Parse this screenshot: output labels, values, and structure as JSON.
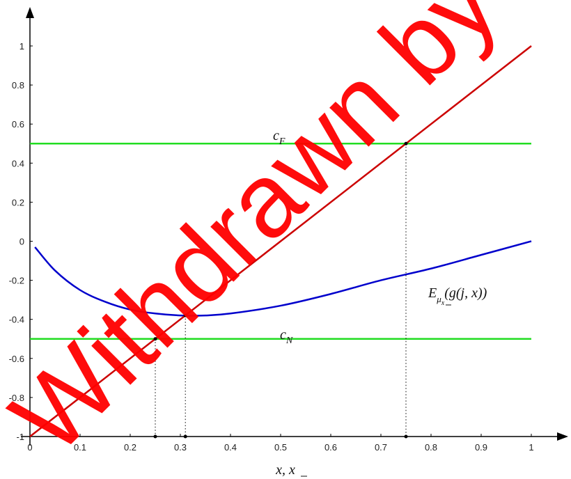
{
  "chart_data": {
    "type": "line",
    "xlim": [
      0,
      1
    ],
    "ylim": [
      -1,
      1
    ],
    "xlabel": "x, x̲",
    "x_ticks": [
      "0",
      "0.1",
      "0.2",
      "0.3",
      "0.4",
      "0.5",
      "0.6",
      "0.7",
      "0.8",
      "0.9",
      "1"
    ],
    "y_ticks": [
      "-1",
      "-0.8",
      "-0.6",
      "-0.4",
      "-0.2",
      "0",
      "0.2",
      "0.4",
      "0.6",
      "0.8",
      "1"
    ],
    "grid": false,
    "series": [
      {
        "name": "",
        "color": "#cc0000",
        "x": [
          0,
          1
        ],
        "y": [
          -1,
          1
        ]
      },
      {
        "name": "E_{μ_x}(g(j, x))",
        "color": "#0000cc",
        "x": [
          0.01,
          0.05,
          0.1,
          0.15,
          0.2,
          0.25,
          0.3,
          0.35,
          0.4,
          0.5,
          0.6,
          0.7,
          0.8,
          0.9,
          1.0
        ],
        "y": [
          -0.03,
          -0.15,
          -0.25,
          -0.31,
          -0.35,
          -0.37,
          -0.38,
          -0.38,
          -0.37,
          -0.33,
          -0.27,
          -0.2,
          -0.14,
          -0.07,
          0
        ]
      },
      {
        "name": "c_F",
        "color": "#22dd22",
        "x": [
          0,
          1
        ],
        "y": [
          0.5,
          0.5
        ]
      },
      {
        "name": "c_N",
        "color": "#22dd22",
        "x": [
          0,
          1
        ],
        "y": [
          -0.5,
          -0.5
        ]
      }
    ],
    "annotations": [
      {
        "text": "c_F",
        "x": 0.5,
        "y": 0.53
      },
      {
        "text": "c_N",
        "x": 0.5,
        "y": -0.47
      },
      {
        "text": "E_{μ_x}(g(j, x))",
        "x": 0.79,
        "y": -0.23
      }
    ],
    "marked_points": [
      {
        "x": 0.25,
        "y": -0.5
      },
      {
        "x": 0.31,
        "y": -0.38
      },
      {
        "x": 0.75,
        "y": 0.5
      }
    ]
  },
  "labels": {
    "cF_main": "c",
    "cF_sub": "F",
    "cN_main": "c",
    "cN_sub": "N",
    "e_main": "E",
    "e_sub": "μ",
    "e_subsub": "x",
    "e_rest": "(g(j, x))",
    "xlabel": "x, x"
  },
  "watermark": {
    "text": "Withdrawn by the",
    "color": "#ff0000"
  }
}
